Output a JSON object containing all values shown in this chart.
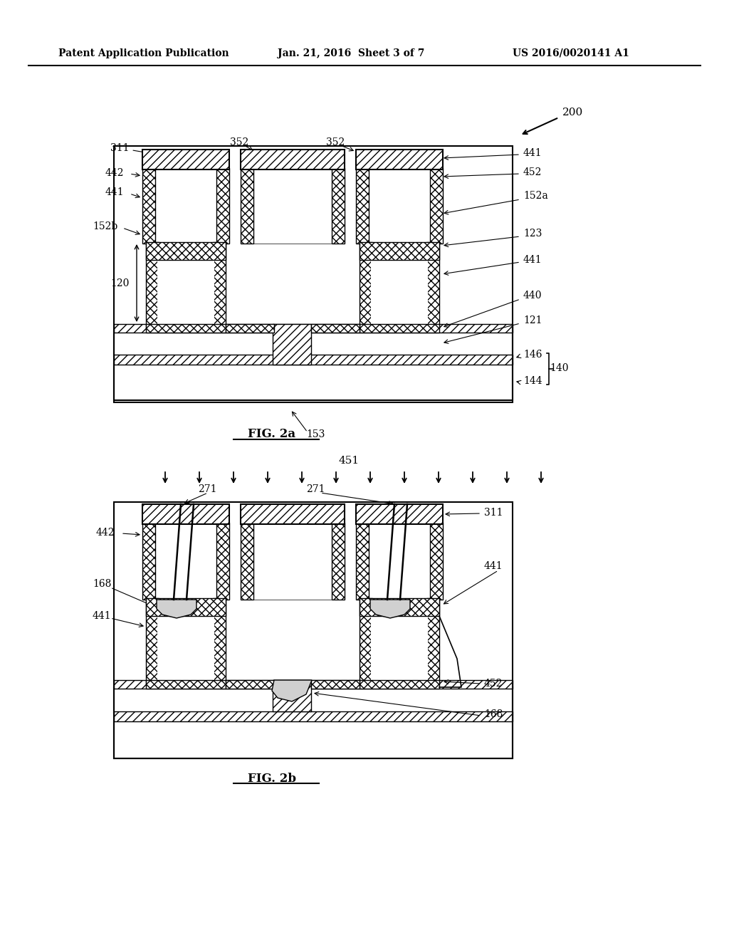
{
  "bg_color": "#ffffff",
  "header_left": "Patent Application Publication",
  "header_mid": "Jan. 21, 2016  Sheet 3 of 7",
  "header_right": "US 2016/0020141 A1",
  "fig2a_label": "FIG. 2a",
  "fig2b_label": "FIG. 2b",
  "ref_200": "200",
  "fig2a_labels": [
    "311",
    "442",
    "441",
    "152b",
    "120",
    "352",
    "352",
    "441",
    "452",
    "152a",
    "123",
    "441",
    "440",
    "121",
    "146",
    "144",
    "140",
    "153"
  ],
  "fig2b_labels": [
    "271",
    "271",
    "311",
    "442",
    "168",
    "441",
    "452",
    "168",
    "451"
  ],
  "arrow_label": "451"
}
